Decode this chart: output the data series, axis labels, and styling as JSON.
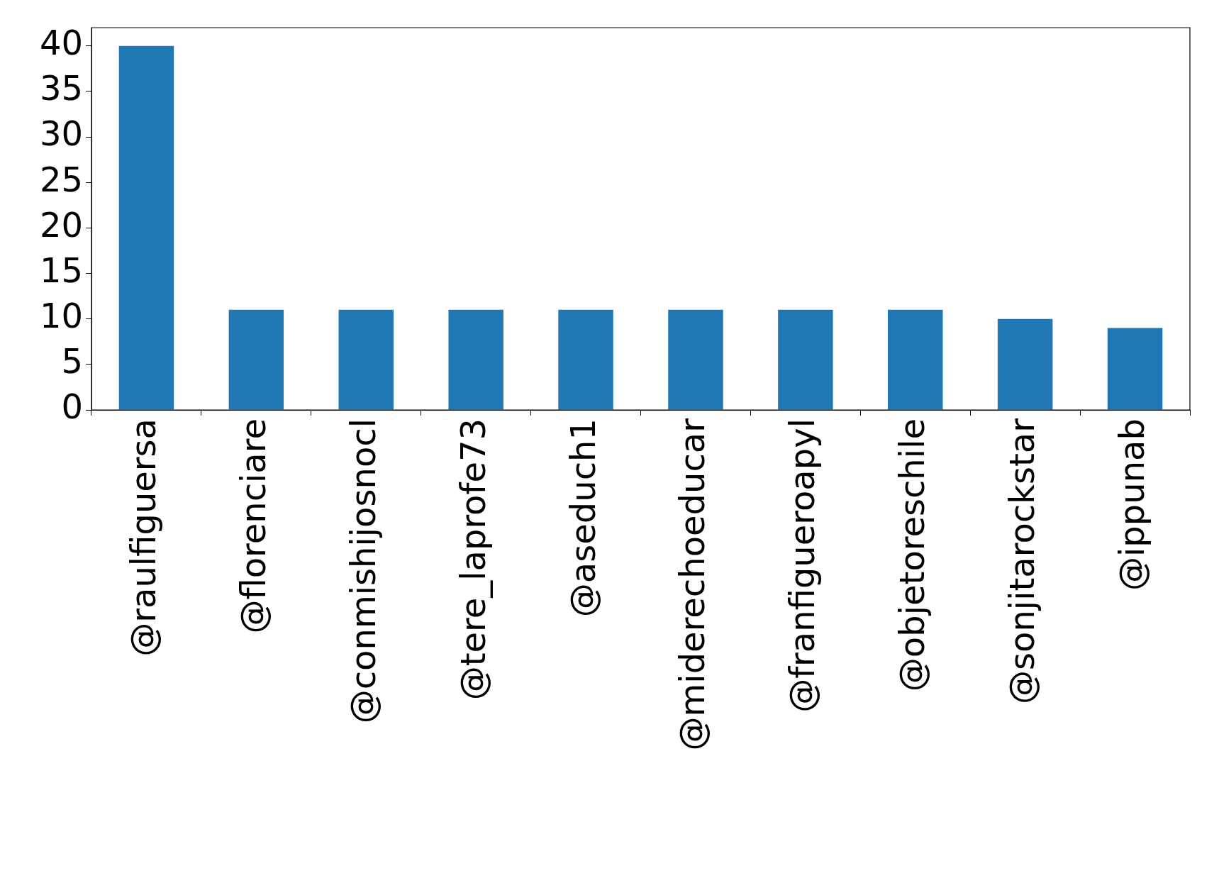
{
  "chart_data": {
    "type": "bar",
    "categories": [
      "@raulfiguersa",
      "@florenciare",
      "@conmishijosnocl",
      "@tere_laprofe73",
      "@aseduch1",
      "@miderechoeducar",
      "@franfigueroapyl",
      "@objetoreschile",
      "@sonjitarockstar",
      "@ippunab"
    ],
    "values": [
      40,
      11,
      11,
      11,
      11,
      11,
      11,
      11,
      10,
      9
    ],
    "color": "#1f77b4",
    "ylim": [
      0,
      42
    ],
    "yticks": [
      0,
      5,
      10,
      15,
      20,
      25,
      30,
      35,
      40
    ],
    "grid": false,
    "legend": false
  }
}
